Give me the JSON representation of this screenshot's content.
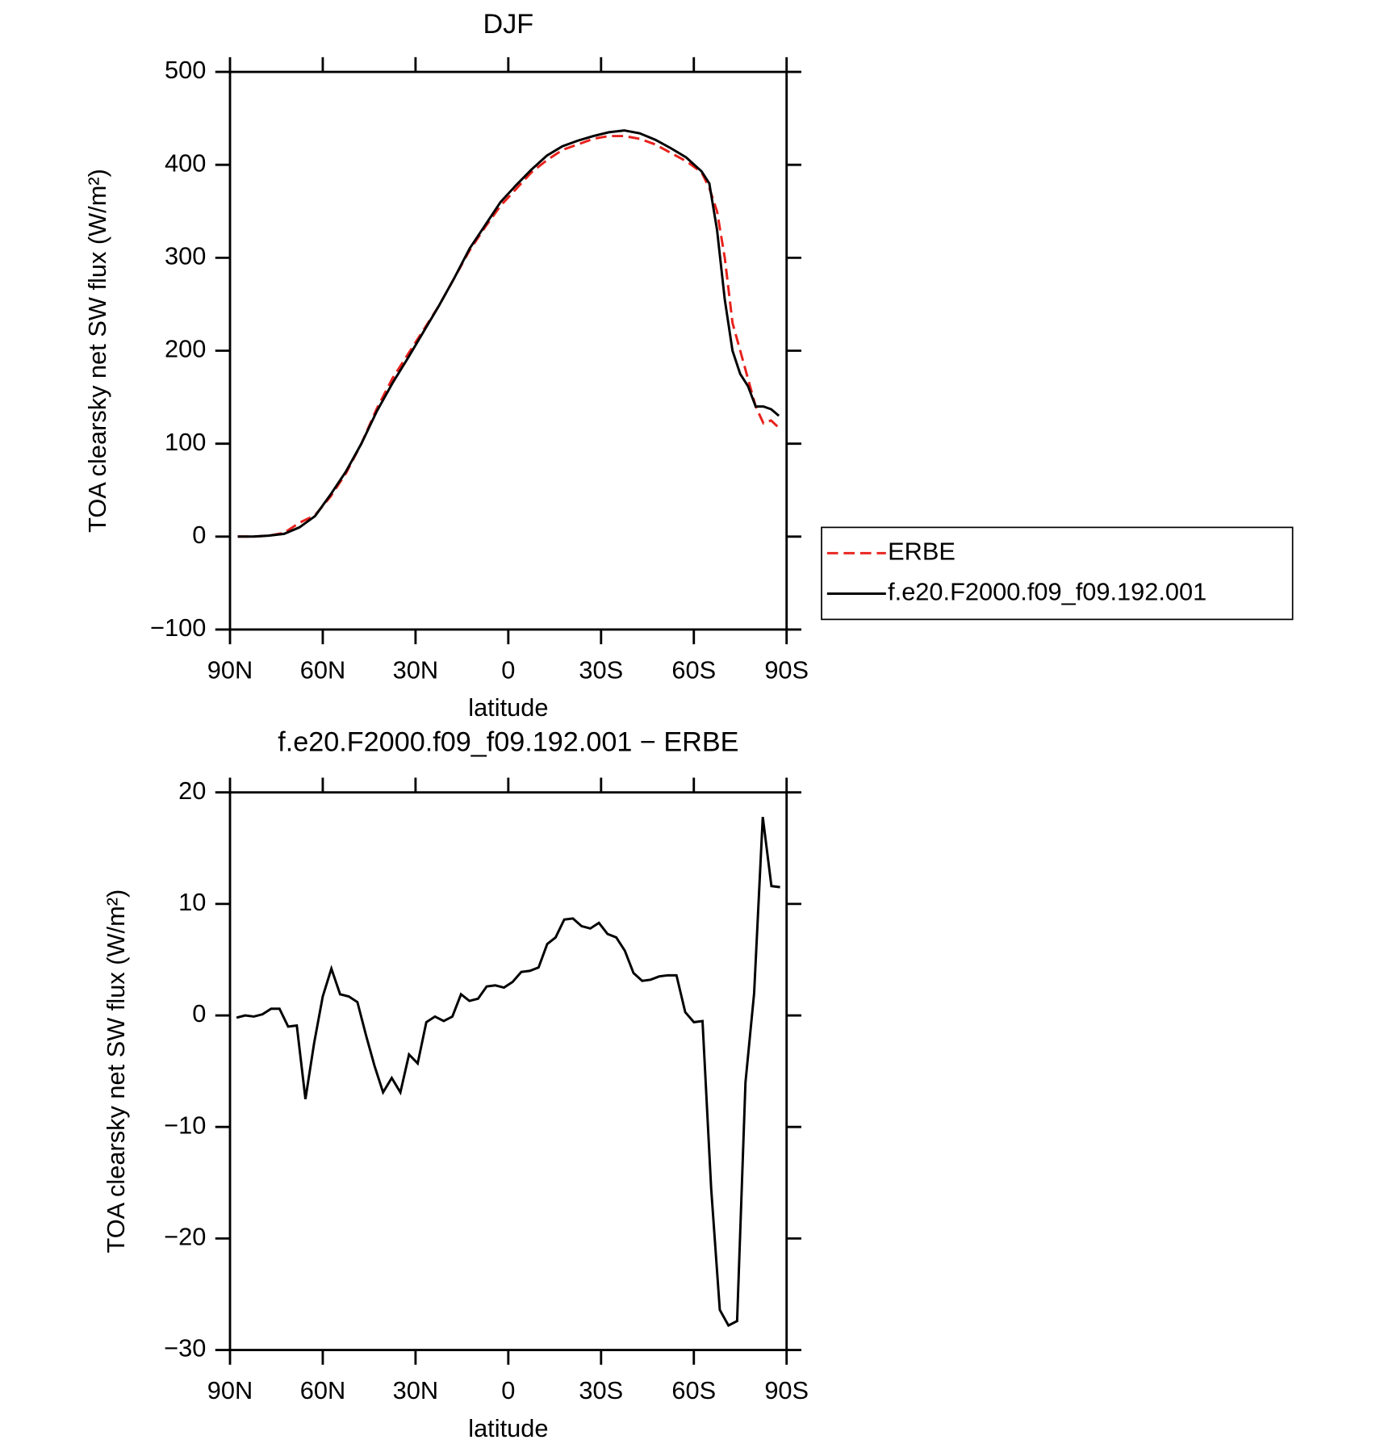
{
  "chart_data": [
    {
      "type": "line",
      "title": "DJF",
      "xlabel": "latitude",
      "ylabel": "TOA clearsky net SW flux (W/m²)",
      "xlim": [
        90,
        -90
      ],
      "ylim": [
        -100,
        500
      ],
      "xticks": [
        {
          "value": 90,
          "label": "90N"
        },
        {
          "value": 60,
          "label": "60N"
        },
        {
          "value": 30,
          "label": "30N"
        },
        0,
        {
          "value": -30,
          "label": "30S"
        },
        {
          "value": -60,
          "label": "60S"
        },
        {
          "value": -90,
          "label": "90S"
        }
      ],
      "yticks": [
        {
          "value": -100,
          "label": "−100"
        },
        0,
        100,
        200,
        300,
        400,
        500
      ],
      "legend": "outside-right",
      "x": [
        87.5,
        82.5,
        77.5,
        72.5,
        67.5,
        62.5,
        57.5,
        52.5,
        47.5,
        42.5,
        37.5,
        32.5,
        27.5,
        22.5,
        17.5,
        12.5,
        7.5,
        2.5,
        -2.5,
        -7.5,
        -12.5,
        -17.5,
        -22.5,
        -27.5,
        -32.5,
        -37.5,
        -42.5,
        -47.5,
        -52.5,
        -57.5,
        -62.5,
        -65,
        -67.5,
        -70,
        -72.5,
        -75,
        -77.5,
        -80,
        -82.5,
        -85,
        -87.5
      ],
      "series": [
        {
          "name": "ERBE",
          "color": "#e8211c",
          "dashed": true,
          "values": [
            0,
            0,
            1,
            4,
            15,
            23,
            43,
            68,
            100,
            138,
            170,
            196,
            222,
            248,
            278,
            308,
            333,
            356,
            374,
            392,
            405,
            416,
            422,
            428,
            431,
            431,
            428,
            422,
            413,
            404,
            392,
            375,
            350,
            300,
            230,
            200,
            170,
            140,
            122,
            125,
            117
          ]
        },
        {
          "name": "f.e20.F2000.f09_f09.192.001",
          "color": "#000000",
          "dashed": false,
          "values": [
            0,
            0,
            1,
            3,
            10,
            22,
            45,
            70,
            100,
            135,
            165,
            192,
            220,
            248,
            278,
            310,
            335,
            360,
            378,
            395,
            410,
            420,
            426,
            431,
            435,
            437,
            434,
            427,
            418,
            408,
            393,
            380,
            330,
            255,
            200,
            175,
            162,
            140,
            140,
            137,
            130
          ]
        }
      ]
    },
    {
      "type": "line",
      "title": "f.e20.F2000.f09_f09.192.001 − ERBE",
      "xlabel": "latitude",
      "ylabel": "TOA clearsky net SW flux (W/m²)",
      "xlim": [
        90,
        -90
      ],
      "ylim": [
        -30,
        20
      ],
      "xticks": [
        {
          "value": 90,
          "label": "90N"
        },
        {
          "value": 60,
          "label": "60N"
        },
        {
          "value": 30,
          "label": "30N"
        },
        0,
        {
          "value": -30,
          "label": "30S"
        },
        {
          "value": -60,
          "label": "60S"
        },
        {
          "value": -90,
          "label": "90S"
        }
      ],
      "yticks": [
        {
          "value": -30,
          "label": "−30"
        },
        {
          "value": -20,
          "label": "−20"
        },
        {
          "value": -10,
          "label": "−10"
        },
        0,
        10,
        20
      ],
      "x": [
        87.9,
        85.1,
        82.3,
        79.5,
        76.7,
        74.0,
        71.2,
        68.4,
        65.6,
        62.8,
        60.0,
        57.2,
        54.4,
        51.6,
        48.8,
        46.0,
        43.3,
        40.5,
        37.7,
        34.9,
        32.1,
        29.3,
        26.5,
        23.7,
        20.9,
        18.1,
        15.3,
        12.6,
        9.8,
        7.0,
        4.2,
        1.4,
        -1.4,
        -4.2,
        -7.0,
        -9.8,
        -12.6,
        -15.3,
        -18.1,
        -20.9,
        -23.7,
        -26.5,
        -29.3,
        -32.1,
        -34.9,
        -37.7,
        -40.5,
        -43.3,
        -46.0,
        -48.8,
        -51.6,
        -54.4,
        -57.2,
        -60.0,
        -62.8,
        -65.6,
        -68.4,
        -71.2,
        -74.0,
        -76.7,
        -79.5,
        -82.3,
        -85.1,
        -87.9
      ],
      "series": [
        {
          "color": "#000000",
          "values": [
            -0.2,
            0,
            -0.1,
            0.1,
            0.6,
            0.6,
            -1,
            -0.9,
            -7.5,
            -2.5,
            1.7,
            4.2,
            1.9,
            1.7,
            1.2,
            -1.8,
            -4.5,
            -6.9,
            -5.6,
            -6.9,
            -3.5,
            -4.3,
            -0.6,
            -0.1,
            -0.5,
            -0.1,
            1.9,
            1.3,
            1.5,
            2.6,
            2.7,
            2.5,
            3,
            3.9,
            4,
            4.3,
            6.4,
            7,
            8.6,
            8.7,
            8,
            7.8,
            8.3,
            7.3,
            7,
            5.8,
            3.8,
            3.1,
            3.2,
            3.5,
            3.6,
            3.6,
            0.3,
            -0.6,
            -0.5,
            -15.5,
            -26.4,
            -27.8,
            -27.4,
            -6,
            2,
            17.8,
            11.6,
            11.5
          ]
        }
      ]
    }
  ]
}
